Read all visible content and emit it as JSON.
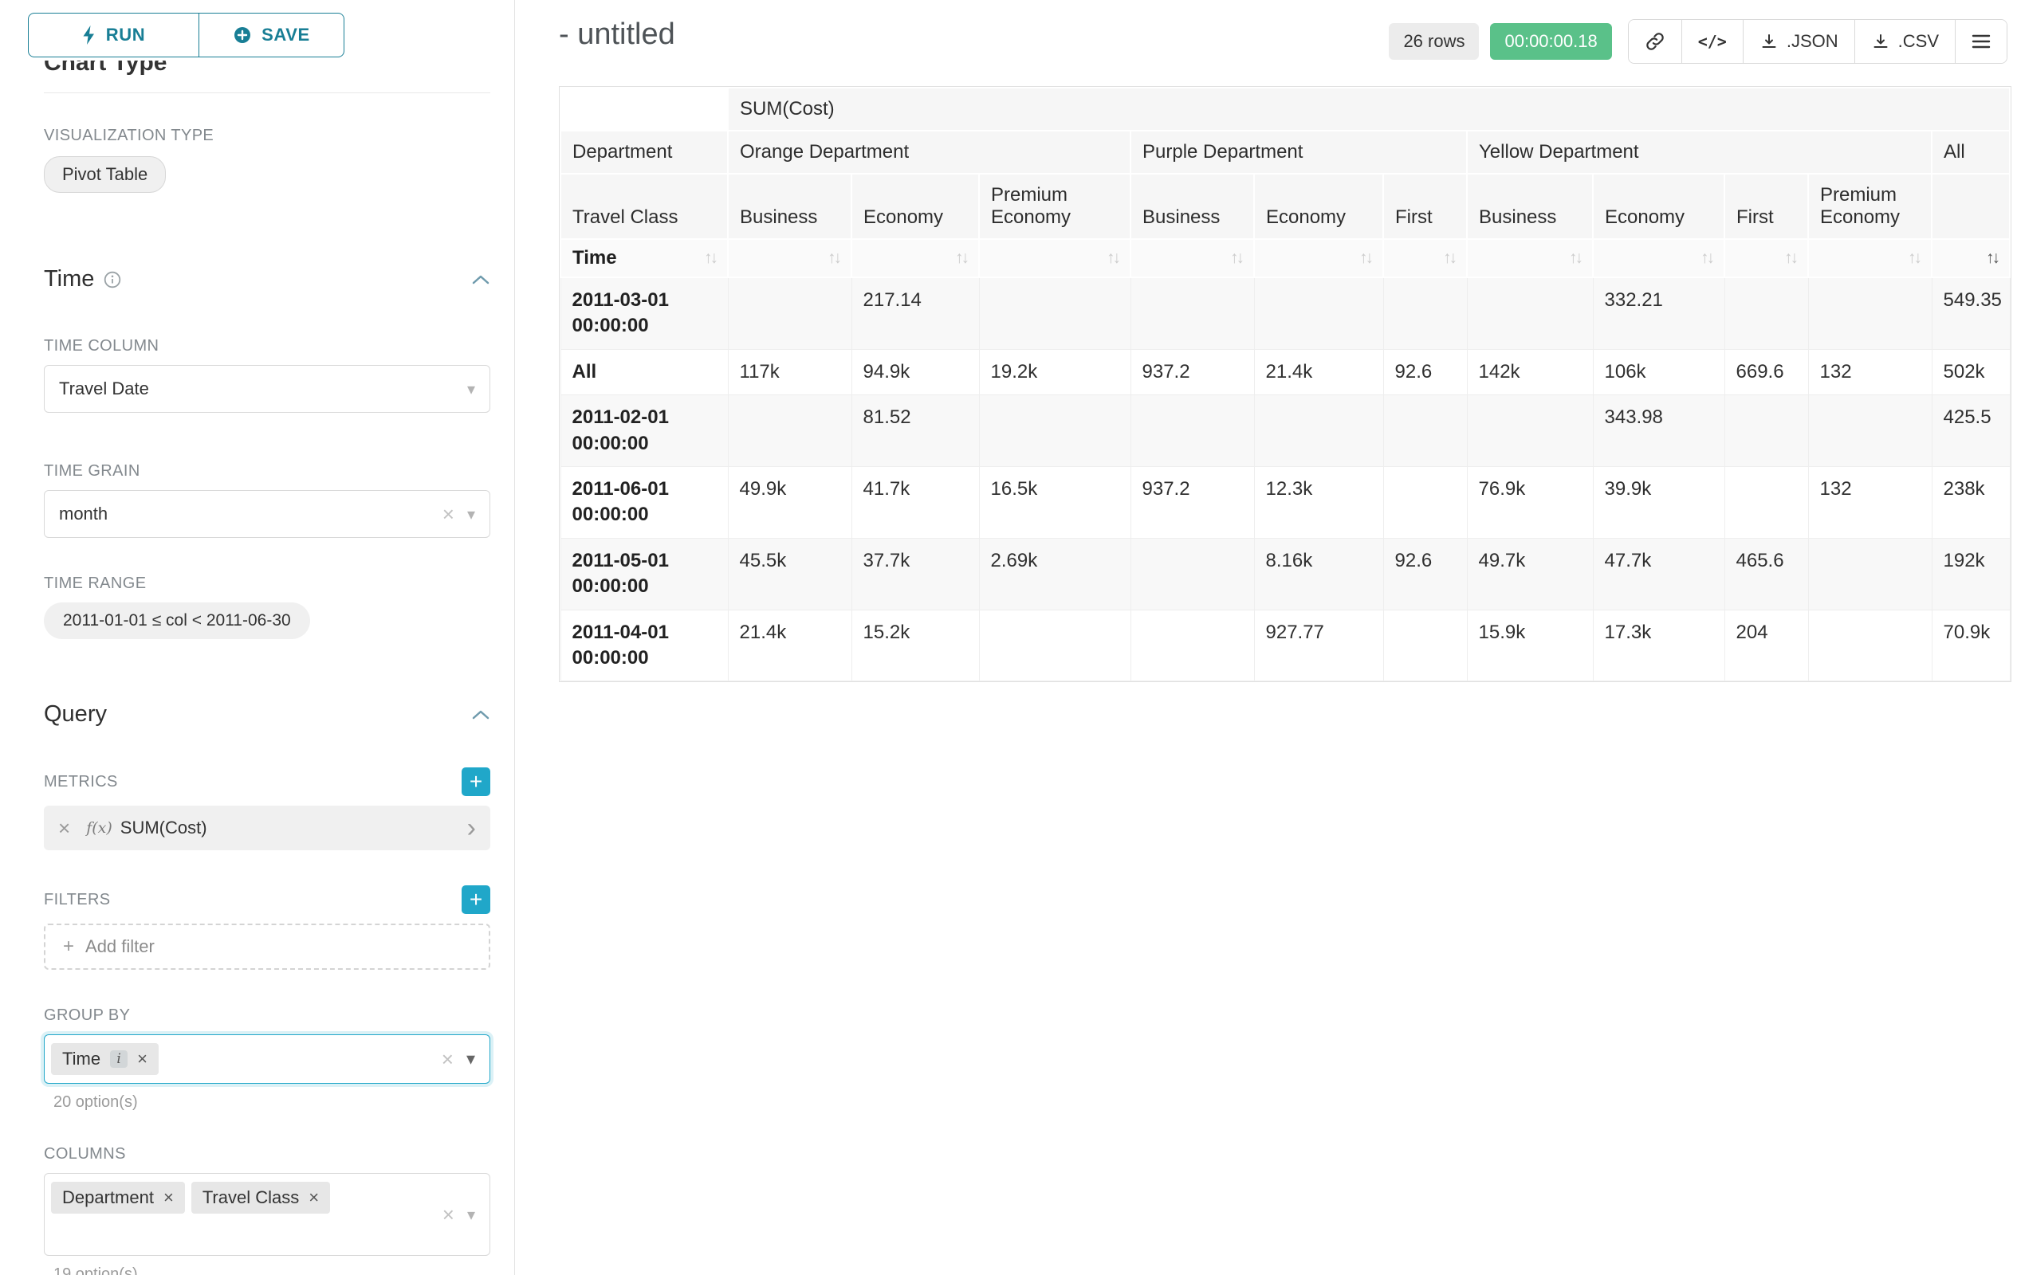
{
  "sidebar": {
    "run_label": "RUN",
    "save_label": "SAVE",
    "chart_type_heading": "Chart Type",
    "visualization_type_label": "VISUALIZATION TYPE",
    "visualization_type_value": "Pivot Table",
    "time": {
      "heading": "Time",
      "time_column_label": "TIME COLUMN",
      "time_column_value": "Travel Date",
      "time_grain_label": "TIME GRAIN",
      "time_grain_value": "month",
      "time_range_label": "TIME RANGE",
      "time_range_value": "2011-01-01 ≤ col < 2011-06-30"
    },
    "query": {
      "heading": "Query",
      "metrics_label": "METRICS",
      "metric_fn": "f(x)",
      "metric_name": "SUM(Cost)",
      "filters_label": "FILTERS",
      "add_filter_label": "Add filter",
      "group_by_label": "GROUP BY",
      "group_by_values": [
        "Time"
      ],
      "group_by_hint": "20 option(s)",
      "columns_label": "COLUMNS",
      "columns_values": [
        "Department",
        "Travel Class"
      ],
      "columns_hint": "19 option(s)"
    }
  },
  "header": {
    "title": "- untitled",
    "row_count": "26 rows",
    "timer": "00:00:00.18",
    "code_icon_text": "</>",
    "json_label": ".JSON",
    "csv_label": ".CSV"
  },
  "pivot_table": {
    "type": "table",
    "metric_header": "SUM(Cost)",
    "department_label": "Department",
    "travel_class_label": "Travel Class",
    "time_label": "Time",
    "sorted_column": "All",
    "sort_direction": "desc",
    "groups": [
      {
        "name": "Orange Department",
        "cols": [
          "Business",
          "Economy",
          "Premium Economy"
        ]
      },
      {
        "name": "Purple Department",
        "cols": [
          "Business",
          "Economy",
          "First"
        ]
      },
      {
        "name": "Yellow Department",
        "cols": [
          "Business",
          "Economy",
          "First",
          "Premium Economy"
        ]
      },
      {
        "name": "All",
        "cols": [
          ""
        ]
      }
    ],
    "rows": [
      {
        "time": "2011-03-01 00:00:00",
        "values": [
          "",
          "217.14",
          "",
          "",
          "",
          "",
          "",
          "332.21",
          "",
          "",
          "549.35"
        ]
      },
      {
        "time": "All",
        "values": [
          "117k",
          "94.9k",
          "19.2k",
          "937.2",
          "21.4k",
          "92.6",
          "142k",
          "106k",
          "669.6",
          "132",
          "502k"
        ]
      },
      {
        "time": "2011-02-01 00:00:00",
        "values": [
          "",
          "81.52",
          "",
          "",
          "",
          "",
          "",
          "343.98",
          "",
          "",
          "425.5"
        ]
      },
      {
        "time": "2011-06-01 00:00:00",
        "values": [
          "49.9k",
          "41.7k",
          "16.5k",
          "937.2",
          "12.3k",
          "",
          "76.9k",
          "39.9k",
          "",
          "132",
          "238k"
        ]
      },
      {
        "time": "2011-05-01 00:00:00",
        "values": [
          "45.5k",
          "37.7k",
          "2.69k",
          "",
          "8.16k",
          "92.6",
          "49.7k",
          "47.7k",
          "465.6",
          "",
          "192k"
        ]
      },
      {
        "time": "2011-04-01 00:00:00",
        "values": [
          "21.4k",
          "15.2k",
          "",
          "",
          "927.77",
          "",
          "15.9k",
          "17.3k",
          "204",
          "",
          "70.9k"
        ]
      }
    ]
  }
}
